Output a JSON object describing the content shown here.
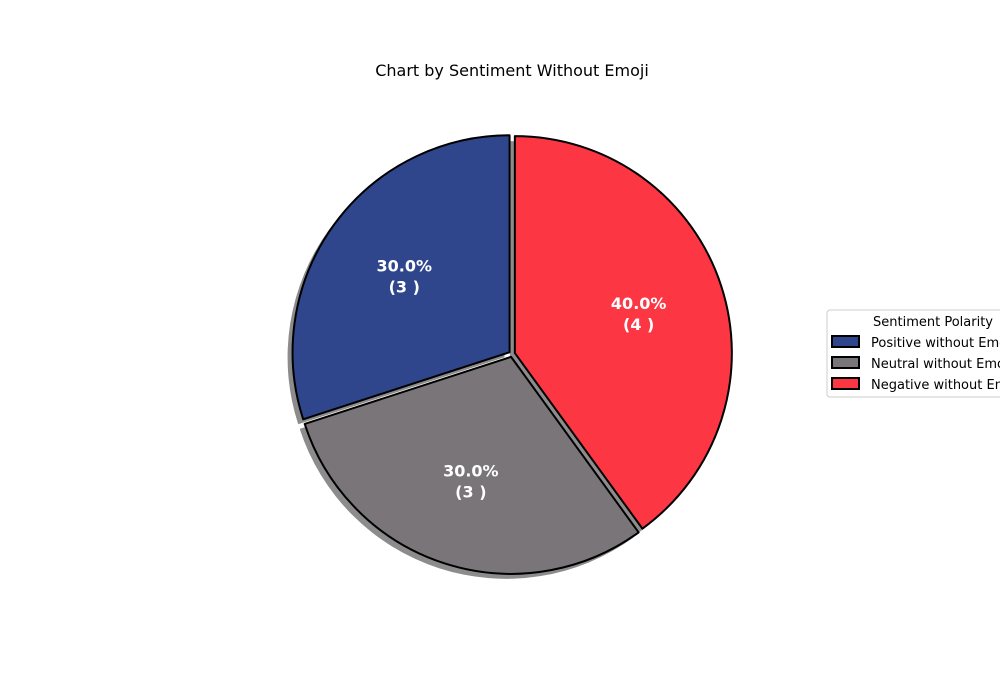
{
  "chart_data": {
    "type": "pie",
    "title": "Chart by Sentiment Without Emoji",
    "categories": [
      "Positive without Emoji",
      "Neutral without Emoji",
      "Negative without Emoji"
    ],
    "values": [
      3,
      3,
      4
    ],
    "labels": [
      {
        "pct": "30.0%",
        "count": "(3 )"
      },
      {
        "pct": "30.0%",
        "count": "(3 )"
      },
      {
        "pct": "40.0%",
        "count": "(4 )"
      }
    ],
    "colors": [
      "#30468c",
      "#7a7579",
      "#fd3644"
    ],
    "start_angle_deg": 90,
    "direction": "counterclockwise",
    "shadow": true,
    "legend": {
      "title": "Sentiment Polarity",
      "placement": "center-right",
      "entries": [
        "Positive without Emoji",
        "Neutral without Emoji",
        "Negative without Emoji"
      ]
    }
  }
}
